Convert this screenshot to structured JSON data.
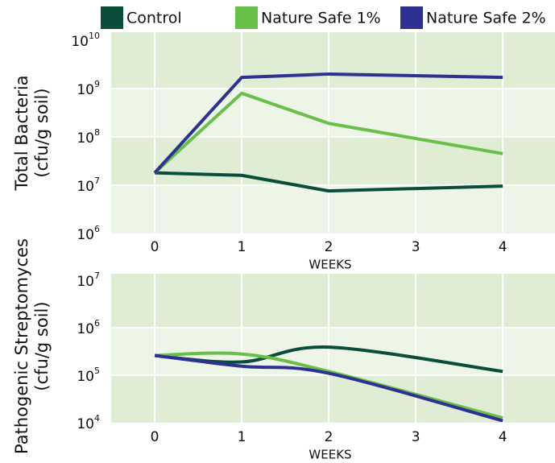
{
  "chart_data": [
    {
      "type": "line",
      "ylabel": [
        "Total Bacteria",
        "(cfu/g soil)"
      ],
      "xlabel": "WEEKS",
      "x": [
        0,
        1,
        2,
        4
      ],
      "xlim": [
        -0.5,
        4.6
      ],
      "xticks": [
        0,
        1,
        2,
        3,
        4
      ],
      "yscale": "log",
      "ylim": [
        1000000,
        10000000000
      ],
      "yticks": [
        {
          "value": 1000000,
          "label": "10",
          "exponent": "6"
        },
        {
          "value": 10000000,
          "label": "10",
          "exponent": "7"
        },
        {
          "value": 100000000,
          "label": "10",
          "exponent": "8"
        },
        {
          "value": 1000000000,
          "label": "10",
          "exponent": "9"
        },
        {
          "value": 10000000000,
          "label": "10",
          "exponent": "10"
        }
      ],
      "grid": true,
      "legend": "top",
      "smooth": false,
      "series": [
        {
          "name": "Control",
          "color": "#0b4d3b",
          "values": [
            18000000,
            16000000,
            7600000,
            9600000
          ]
        },
        {
          "name": "Nature Safe 1%",
          "color": "#6abf4b",
          "values": [
            18000000,
            800000000,
            190000000,
            45000000
          ]
        },
        {
          "name": "Nature Safe 2%",
          "color": "#2e3192",
          "values": [
            18000000,
            1700000000,
            2000000000,
            1700000000
          ]
        }
      ]
    },
    {
      "type": "line",
      "ylabel": [
        "Pathogenic Streptomyces",
        "(cfu/g soil)"
      ],
      "xlabel": "WEEKS",
      "x": [
        0,
        1,
        2,
        4
      ],
      "xlim": [
        -0.5,
        4.6
      ],
      "xticks": [
        0,
        1,
        2,
        3,
        4
      ],
      "yscale": "log",
      "ylim": [
        10000,
        10000000
      ],
      "yticks": [
        {
          "value": 10000,
          "label": "10",
          "exponent": "4"
        },
        {
          "value": 100000,
          "label": "10",
          "exponent": "5"
        },
        {
          "value": 1000000,
          "label": "10",
          "exponent": "6"
        },
        {
          "value": 10000000,
          "label": "10",
          "exponent": "7"
        }
      ],
      "grid": true,
      "smooth": true,
      "series": [
        {
          "name": "Control",
          "color": "#0b4d3b",
          "values": [
            260000,
            190000,
            390000,
            120000
          ]
        },
        {
          "name": "Nature Safe 1%",
          "color": "#6abf4b",
          "values": [
            260000,
            280000,
            120000,
            12600
          ]
        },
        {
          "name": "Nature Safe 2%",
          "color": "#2e3192",
          "values": [
            260000,
            155000,
            110000,
            11000
          ]
        }
      ]
    }
  ]
}
